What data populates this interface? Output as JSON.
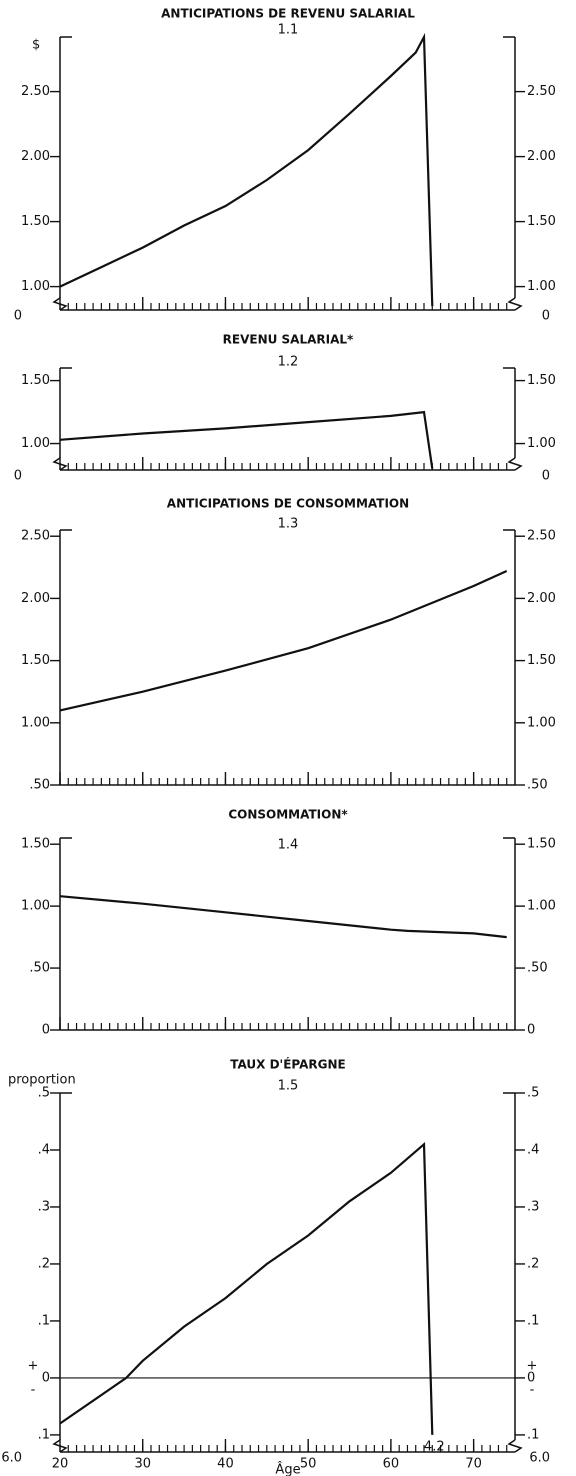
{
  "chart_data": [
    {
      "type": "line",
      "title": "ANTICIPATIONS DE REVENU SALARIAL",
      "subtitle": "1.1",
      "unit": "$",
      "break_label": "0",
      "x": [
        20,
        25,
        30,
        35,
        40,
        45,
        50,
        55,
        60,
        63,
        64,
        65
      ],
      "values": [
        1.0,
        1.15,
        1.3,
        1.47,
        1.62,
        1.82,
        2.05,
        2.33,
        2.62,
        2.8,
        2.92,
        0.85
      ],
      "xlim": [
        20,
        75
      ],
      "xticks": [
        20,
        30,
        40,
        50,
        60,
        70
      ],
      "ylim": [
        0.82,
        2.92
      ],
      "yticks": [
        {
          "value": 1.0,
          "label": "1.00"
        },
        {
          "value": 1.5,
          "label": "1.50"
        },
        {
          "value": 2.0,
          "label": "2.00"
        },
        {
          "value": 2.5,
          "label": "2.50"
        }
      ],
      "color": "#111111"
    },
    {
      "type": "line",
      "title": "REVENU SALARIAL*",
      "subtitle": "1.2",
      "break_label": "0",
      "x": [
        20,
        30,
        40,
        50,
        60,
        64,
        65
      ],
      "values": [
        1.03,
        1.08,
        1.12,
        1.17,
        1.22,
        1.25,
        0.8
      ],
      "xlim": [
        20,
        75
      ],
      "xticks": [
        20,
        30,
        40,
        50,
        60,
        70
      ],
      "ylim": [
        0.79,
        1.6
      ],
      "yticks": [
        {
          "value": 1.0,
          "label": "1.00"
        },
        {
          "value": 1.5,
          "label": "1.50"
        }
      ],
      "color": "#111111"
    },
    {
      "type": "line",
      "title": "ANTICIPATIONS DE CONSOMMATION",
      "subtitle": "1.3",
      "x": [
        20,
        30,
        40,
        50,
        60,
        70,
        74
      ],
      "values": [
        1.1,
        1.25,
        1.42,
        1.6,
        1.83,
        2.1,
        2.22
      ],
      "xlim": [
        20,
        75
      ],
      "xticks": [
        20,
        30,
        40,
        50,
        60,
        70
      ],
      "ylim": [
        0.5,
        2.55
      ],
      "yticks": [
        {
          "value": 0.5,
          "label": ".50"
        },
        {
          "value": 1.0,
          "label": "1.00"
        },
        {
          "value": 1.5,
          "label": "1.50"
        },
        {
          "value": 2.0,
          "label": "2.00"
        },
        {
          "value": 2.5,
          "label": "2.50"
        }
      ],
      "color": "#111111"
    },
    {
      "type": "line",
      "title": "CONSOMMATION*",
      "subtitle": "1.4",
      "x": [
        20,
        30,
        40,
        50,
        60,
        62,
        70,
        74
      ],
      "values": [
        1.08,
        1.02,
        0.95,
        0.88,
        0.81,
        0.8,
        0.78,
        0.75
      ],
      "xlim": [
        20,
        75
      ],
      "xticks": [
        20,
        30,
        40,
        50,
        60,
        70
      ],
      "ylim": [
        0,
        1.55
      ],
      "yticks": [
        0,
        {
          "value": 0.5,
          "label": ".50"
        },
        {
          "value": 1.0,
          "label": "1.00"
        },
        {
          "value": 1.5,
          "label": "1.50"
        }
      ],
      "color": "#111111"
    },
    {
      "type": "line",
      "title": "TAUX D'ÉPARGNE",
      "subtitle": "1.5",
      "unit": "proportion",
      "break_label": "6.0",
      "zero_line": true,
      "zero_signs": [
        "+",
        "-"
      ],
      "annotation": "4.2",
      "x": [
        20,
        25,
        28,
        30,
        35,
        40,
        45,
        50,
        55,
        60,
        64,
        65
      ],
      "values": [
        -0.08,
        -0.03,
        0.0,
        0.03,
        0.09,
        0.14,
        0.2,
        0.25,
        0.31,
        0.36,
        0.41,
        -0.1
      ],
      "xlim": [
        20,
        75
      ],
      "xticks": [
        20,
        30,
        40,
        50,
        60,
        70
      ],
      "xlabel": "Âge",
      "ylim": [
        -0.13,
        0.5
      ],
      "yticks": [
        {
          "value": -0.1,
          "label": ".1"
        },
        0,
        {
          "value": 0.1,
          "label": ".1"
        },
        {
          "value": 0.2,
          "label": ".2"
        },
        {
          "value": 0.3,
          "label": ".3"
        },
        {
          "value": 0.4,
          "label": ".4"
        },
        {
          "value": 0.5,
          "label": ".5"
        }
      ],
      "color": "#111111"
    }
  ]
}
